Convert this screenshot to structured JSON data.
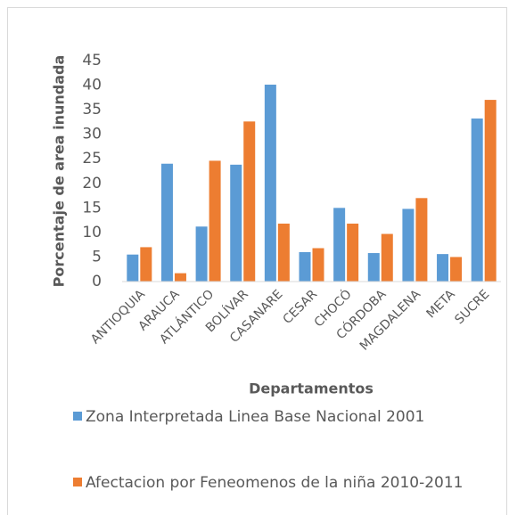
{
  "chart_data": {
    "type": "bar",
    "y_label": "Porcentaje de area inundada",
    "x_label": "Departamentos",
    "categories": [
      "ANTIOQUIA",
      "ARAUCA",
      "ATLÁNTICO",
      "BOLÍVAR",
      "CASANARE",
      "CESAR",
      "CHOCÓ",
      "CÓRDOBA",
      "MAGDALENA",
      "META",
      "SUCRE"
    ],
    "series": [
      {
        "name": "Zona Interpretada Linea Base Nacional 2001",
        "color": "#5b9bd5",
        "values": [
          5.5,
          24,
          11.2,
          23.8,
          40.1,
          6,
          15,
          5.8,
          14.8,
          5.6,
          33.2
        ]
      },
      {
        "name": "Afectacion por Feneomenos de la niña 2010-2011",
        "color": "#ed7d31",
        "values": [
          7,
          1.7,
          24.6,
          32.6,
          11.8,
          6.8,
          11.8,
          9.7,
          17,
          5,
          37
        ]
      }
    ],
    "ylim": [
      0,
      45
    ],
    "yticks": [
      0,
      5,
      10,
      15,
      20,
      25,
      30,
      35,
      40,
      45
    ],
    "grid": false
  }
}
